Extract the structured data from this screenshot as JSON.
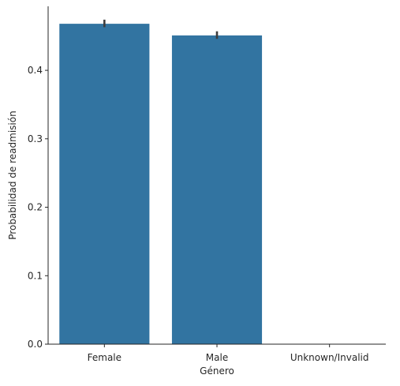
{
  "chart_data": {
    "type": "bar",
    "categories": [
      "Female",
      "Male",
      "Unknown/Invalid"
    ],
    "values": [
      0.468,
      0.451,
      0.0
    ],
    "errors": [
      {
        "low": 0.463,
        "high": 0.474
      },
      {
        "low": 0.446,
        "high": 0.457
      },
      null
    ],
    "xlabel": "Género",
    "ylabel": "Probabilidad de readmisión",
    "ylim": [
      0,
      0.4935
    ],
    "yticks": [
      0.0,
      0.1,
      0.2,
      0.3,
      0.4
    ],
    "ytick_labels": [
      "0.0",
      "0.1",
      "0.2",
      "0.3",
      "0.4"
    ],
    "bar_color": "#3274a1",
    "error_color": "#3d3d3d",
    "grid": false,
    "legend": "none"
  }
}
